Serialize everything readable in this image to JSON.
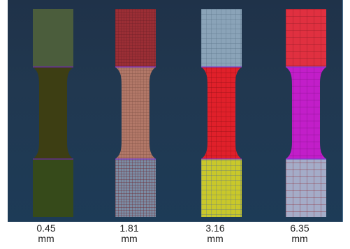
{
  "specimens": [
    {
      "value": "0.45",
      "unit": "mm",
      "colors": {
        "top": "#4b5d3c",
        "middle": "#3d3e13",
        "bottom": "#364a1a",
        "mesh": "#2a2d10",
        "middleMesh": "#2a2b0d",
        "boundary": "#6c2aa8"
      },
      "mesh": "none"
    },
    {
      "value": "1.81",
      "unit": "mm",
      "colors": {
        "top": "#9b2e35",
        "middle": "#b27868",
        "bottom": "#7b8ca4",
        "mesh": "#6c1f26",
        "middleMesh": "#7e5044",
        "boundary": "#7a3bd0"
      },
      "mesh": "fine"
    },
    {
      "value": "3.16",
      "unit": "mm",
      "colors": {
        "top": "#8aa3b8",
        "middle": "#e0202a",
        "bottom": "#c9c82a",
        "mesh": "#5c7489",
        "middleMesh": "#8e0f16",
        "boundary": "#7a3bd0"
      },
      "mesh": "medium"
    },
    {
      "value": "6.35",
      "unit": "mm",
      "colors": {
        "top": "#e03040",
        "middle": "#c21ec9",
        "bottom": "#a4acc8",
        "mesh": "#8a1a24",
        "middleMesh": "#7a0f80",
        "boundary": "#7a3bd0"
      },
      "mesh": "coarse"
    }
  ]
}
